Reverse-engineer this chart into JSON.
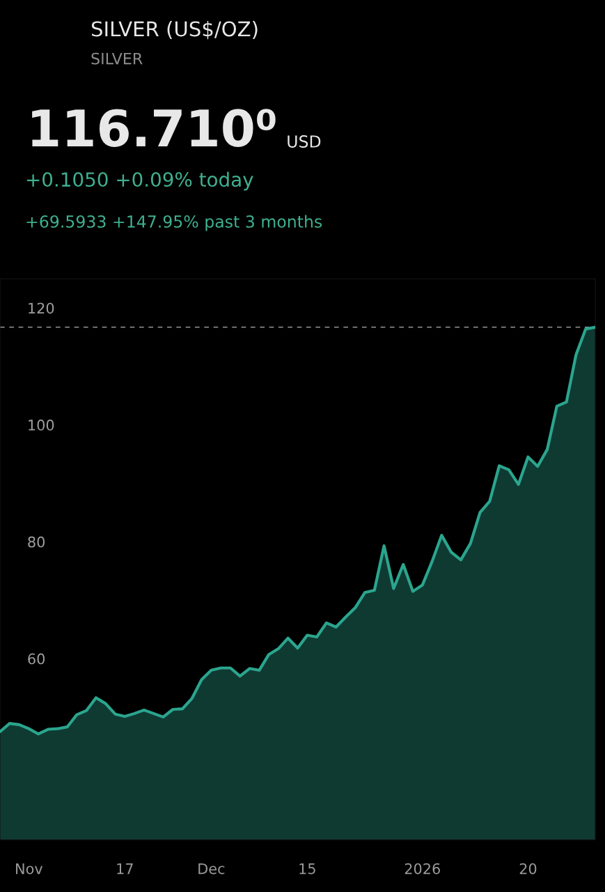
{
  "chart_data": {
    "type": "area",
    "title": "SILVER (US$/OZ)",
    "subtitle": "SILVER",
    "annotations": [
      "116.710⁰",
      "USD",
      "+0.1050 +0.09% today",
      "+69.5933 +147.95% past 3 months"
    ],
    "categories": [
      null,
      null,
      null,
      "Nov",
      null,
      null,
      null,
      null,
      null,
      null,
      null,
      null,
      null,
      "17",
      null,
      null,
      null,
      null,
      null,
      null,
      null,
      null,
      "Dec",
      null,
      null,
      null,
      null,
      null,
      null,
      null,
      null,
      null,
      "15",
      null,
      null,
      null,
      null,
      null,
      null,
      null,
      null,
      null,
      null,
      null,
      "2026",
      null,
      null,
      null,
      null,
      null,
      null,
      null,
      null,
      null,
      null,
      "20",
      null,
      null,
      null,
      null,
      null,
      null,
      null
    ],
    "series": [
      {
        "color": "#2ba58e",
        "values": [
          47.5,
          48.9,
          48.7,
          48.0,
          47.1,
          47.9,
          48.0,
          48.3,
          50.4,
          51.1,
          53.3,
          52.3,
          50.5,
          50.1,
          50.6,
          51.2,
          50.6,
          50.0,
          51.3,
          51.4,
          53.2,
          56.4,
          58.0,
          58.4,
          58.4,
          57.0,
          58.3,
          58.0,
          60.7,
          61.7,
          63.5,
          61.8,
          64.0,
          63.7,
          66.1,
          65.4,
          67.1,
          68.7,
          71.3,
          71.7,
          79.3,
          72.0,
          76.1,
          71.5,
          72.6,
          76.6,
          81.1,
          78.2,
          76.9,
          79.7,
          85.0,
          86.9,
          93.0,
          92.3,
          89.8,
          94.5,
          92.9,
          95.8,
          103.2,
          103.9,
          112.0,
          116.4,
          116.7
        ]
      }
    ],
    "ylim": [
      29,
      125
    ],
    "yticks": [
      60,
      80,
      100,
      120
    ],
    "ref_lines": [
      {
        "axis": "y",
        "value": 116.71,
        "color": "#9a9a9a",
        "line_style": "dashed"
      }
    ],
    "grid": false,
    "legend": false
  }
}
